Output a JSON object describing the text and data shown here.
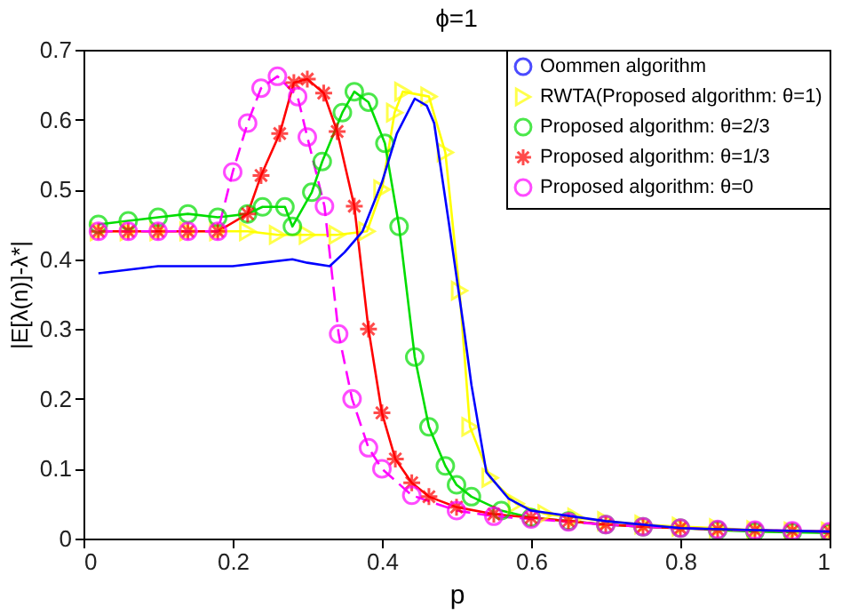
{
  "chart_data": {
    "type": "line",
    "title": "ϕ=1",
    "xlabel": "p",
    "ylabel": "|E[λ(n)]-λ*|",
    "xlim": [
      0,
      1
    ],
    "ylim": [
      0,
      0.7
    ],
    "xticks": [
      0,
      0.2,
      0.4,
      0.6,
      0.8,
      1
    ],
    "yticks": [
      0,
      0.1,
      0.2,
      0.3,
      0.4,
      0.5,
      0.6,
      0.7
    ],
    "grid": false,
    "legend": "top right",
    "series": [
      {
        "name": "Oommen algorithm",
        "color": "#0000ff",
        "marker": "none",
        "line_style": "solid",
        "x": [
          0.02,
          0.06,
          0.1,
          0.2,
          0.24,
          0.28,
          0.3,
          0.33,
          0.35,
          0.374,
          0.4,
          0.42,
          0.444,
          0.46,
          0.47,
          0.49,
          0.51,
          0.52,
          0.54,
          0.57,
          0.6,
          0.7,
          0.8,
          0.9,
          1
        ],
        "values": [
          0.38,
          0.385,
          0.39,
          0.39,
          0.395,
          0.4,
          0.395,
          0.39,
          0.41,
          0.44,
          0.51,
          0.58,
          0.63,
          0.62,
          0.595,
          0.45,
          0.3,
          0.22,
          0.095,
          0.057,
          0.04,
          0.025,
          0.015,
          0.012,
          0.01
        ]
      },
      {
        "name": "RWTA(Proposed algorithm: θ=1)",
        "color": "#ffff00",
        "marker": "triangle",
        "line_style": "solid",
        "x": [
          0.02,
          0.06,
          0.1,
          0.14,
          0.18,
          0.22,
          0.26,
          0.3,
          0.34,
          0.38,
          0.4,
          0.417,
          0.428,
          0.463,
          0.485,
          0.504,
          0.518,
          0.545,
          0.58,
          0.62,
          0.66,
          0.7,
          0.75,
          0.8,
          0.85,
          0.9,
          0.95,
          1
        ],
        "values": [
          0.44,
          0.44,
          0.44,
          0.44,
          0.44,
          0.44,
          0.435,
          0.435,
          0.435,
          0.44,
          0.5,
          0.61,
          0.64,
          0.633,
          0.553,
          0.355,
          0.16,
          0.087,
          0.05,
          0.035,
          0.03,
          0.025,
          0.02,
          0.017,
          0.015,
          0.012,
          0.01,
          0.01
        ]
      },
      {
        "name": "Proposed algorithm: θ=2/3",
        "color": "#00dd00",
        "marker": "circle",
        "line_style": "solid",
        "x": [
          0.02,
          0.06,
          0.1,
          0.14,
          0.18,
          0.22,
          0.24,
          0.27,
          0.28,
          0.306,
          0.32,
          0.347,
          0.363,
          0.382,
          0.404,
          0.423,
          0.444,
          0.463,
          0.485,
          0.5,
          0.52,
          0.56,
          0.6,
          0.65,
          0.7,
          0.75,
          0.8,
          0.85,
          0.9,
          0.95,
          1
        ],
        "values": [
          0.45,
          0.455,
          0.46,
          0.465,
          0.46,
          0.465,
          0.475,
          0.475,
          0.447,
          0.496,
          0.54,
          0.61,
          0.64,
          0.625,
          0.566,
          0.447,
          0.26,
          0.16,
          0.104,
          0.077,
          0.06,
          0.04,
          0.03,
          0.025,
          0.02,
          0.017,
          0.015,
          0.012,
          0.01,
          0.009,
          0.008
        ]
      },
      {
        "name": "Proposed algorithm: θ=1/3",
        "color": "#ff0000",
        "marker": "cross",
        "line_style": "solid",
        "x": [
          0.02,
          0.06,
          0.1,
          0.14,
          0.18,
          0.22,
          0.238,
          0.263,
          0.282,
          0.3,
          0.322,
          0.34,
          0.363,
          0.382,
          0.4,
          0.418,
          0.44,
          0.463,
          0.5,
          0.55,
          0.6,
          0.65,
          0.7,
          0.75,
          0.8,
          0.85,
          0.9,
          0.95,
          1
        ],
        "values": [
          0.44,
          0.44,
          0.44,
          0.44,
          0.44,
          0.465,
          0.52,
          0.58,
          0.653,
          0.658,
          0.638,
          0.583,
          0.476,
          0.3,
          0.18,
          0.114,
          0.08,
          0.06,
          0.045,
          0.035,
          0.03,
          0.025,
          0.02,
          0.017,
          0.015,
          0.013,
          0.012,
          0.011,
          0.01
        ]
      },
      {
        "name": "Proposed algorithm: θ=0",
        "color": "#ff00ff",
        "marker": "circle",
        "line_style": "dashed",
        "x": [
          0.02,
          0.06,
          0.1,
          0.14,
          0.18,
          0.2,
          0.22,
          0.238,
          0.26,
          0.287,
          0.3,
          0.323,
          0.342,
          0.36,
          0.382,
          0.4,
          0.44,
          0.5,
          0.55,
          0.6,
          0.65,
          0.7,
          0.75,
          0.8,
          0.85,
          0.9,
          0.95,
          1
        ],
        "values": [
          0.44,
          0.44,
          0.44,
          0.44,
          0.44,
          0.525,
          0.595,
          0.645,
          0.662,
          0.633,
          0.575,
          0.476,
          0.293,
          0.2,
          0.13,
          0.1,
          0.062,
          0.04,
          0.032,
          0.028,
          0.024,
          0.02,
          0.017,
          0.015,
          0.013,
          0.012,
          0.011,
          0.01
        ]
      }
    ]
  }
}
